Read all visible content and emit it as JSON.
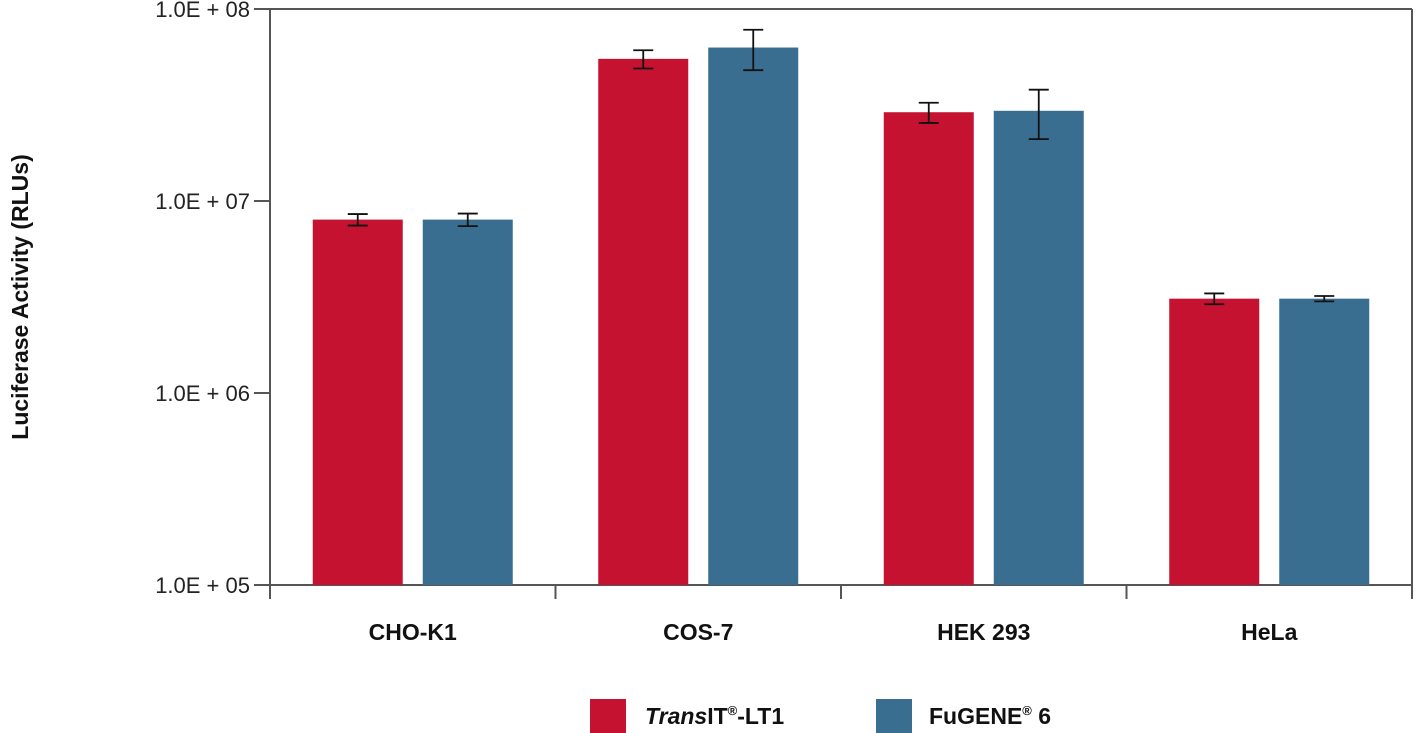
{
  "chart_data": {
    "type": "bar",
    "title": "",
    "xlabel": "",
    "ylabel": "Luciferase Activity (RLUs)",
    "yscale": "log",
    "ylim": [
      100000,
      100000000
    ],
    "yticks": [
      100000,
      1000000,
      10000000,
      100000000
    ],
    "ytick_labels": [
      "1.0E + 05",
      "1.0E + 06",
      "1.0E + 07",
      "1.0E + 08"
    ],
    "categories": [
      "CHO-K1",
      "COS-7",
      "HEK 293",
      "HeLa"
    ],
    "series": [
      {
        "name": "TransIT®-LT1",
        "name_parts": {
          "italic": "Trans",
          "plain": "IT",
          "sup": "®",
          "suffix": "-LT1"
        },
        "color": "#c41230",
        "values": [
          8000000,
          55000000,
          29000000,
          3100000
        ],
        "error": [
          550000,
          6000000,
          3500000,
          200000
        ]
      },
      {
        "name": "FuGENE® 6",
        "name_parts": {
          "italic": "",
          "plain": "FuGENE",
          "sup": "®",
          "suffix": " 6"
        },
        "color": "#3a6e90",
        "values": [
          8000000,
          63000000,
          29500000,
          3100000
        ],
        "error": [
          600000,
          15000000,
          8500000,
          100000
        ]
      }
    ],
    "grid": false,
    "legend_position": "bottom"
  }
}
